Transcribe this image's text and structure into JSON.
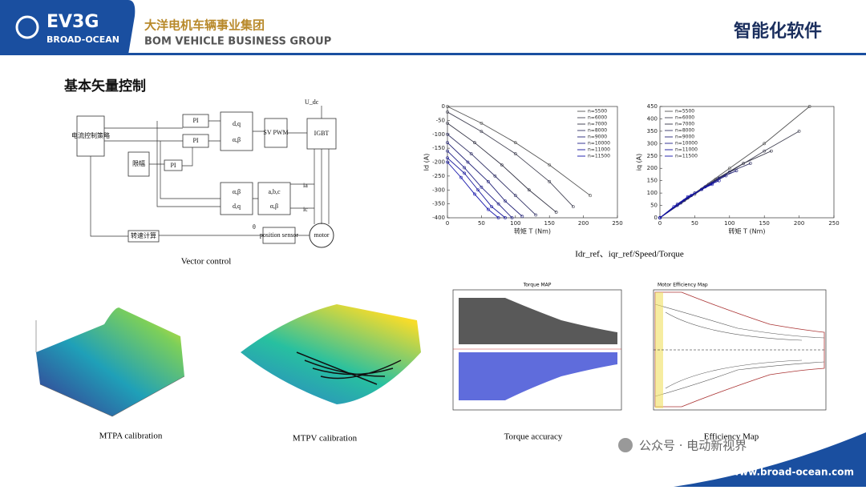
{
  "header": {
    "logo": "EV3G",
    "logo_sub": "BROAD-OCEAN",
    "company_cn": "大洋电机车辆事业集团",
    "company_en": "BOM VEHICLE BUSINESS GROUP",
    "section": "智能化软件"
  },
  "title": "基本矢量控制",
  "diagram": {
    "nodes": [
      "电流控制策略",
      "PI",
      "PI",
      "PI",
      "d,q",
      "α,β",
      "SV PWM",
      "IGBT",
      "U_dc",
      "限幅",
      "α,β",
      "a,b,c",
      "d,q",
      "α,β",
      "ia",
      "ic",
      "θ",
      "position sensor",
      "motor",
      "转速计算"
    ],
    "caption": "Vector control"
  },
  "charts": [
    {
      "type": "line",
      "xlabel": "转矩 T (Nm)",
      "ylabel": "Id (A)",
      "xlim": [
        0,
        250
      ],
      "xticks": [
        0,
        50,
        100,
        150,
        200,
        250
      ],
      "ylim": [
        -400,
        0
      ],
      "yticks": [
        -400,
        -350,
        -300,
        -250,
        -200,
        -150,
        -100,
        -50,
        0
      ],
      "legend": "top-right",
      "series": [
        {
          "name": "n=5500",
          "color": "#555",
          "x": [
            0,
            50,
            100,
            150,
            210
          ],
          "values": [
            0,
            -60,
            -130,
            -210,
            -320
          ]
        },
        {
          "name": "n=6000",
          "color": "#445",
          "x": [
            0,
            50,
            100,
            150,
            185
          ],
          "values": [
            -20,
            -90,
            -170,
            -270,
            -360
          ]
        },
        {
          "name": "n=7000",
          "color": "#334",
          "x": [
            0,
            40,
            80,
            120,
            160
          ],
          "values": [
            -60,
            -130,
            -210,
            -300,
            -380
          ]
        },
        {
          "name": "n=8000",
          "color": "#336",
          "x": [
            0,
            35,
            70,
            100,
            130
          ],
          "values": [
            -100,
            -170,
            -250,
            -320,
            -390
          ]
        },
        {
          "name": "n=9000",
          "color": "#227",
          "x": [
            0,
            30,
            60,
            85,
            110
          ],
          "values": [
            -130,
            -200,
            -270,
            -340,
            -395
          ]
        },
        {
          "name": "n=10000",
          "color": "#228",
          "x": [
            0,
            25,
            50,
            75,
            95
          ],
          "values": [
            -160,
            -220,
            -290,
            -350,
            -400
          ]
        },
        {
          "name": "n=11000",
          "color": "#119",
          "x": [
            0,
            25,
            45,
            65,
            85
          ],
          "values": [
            -185,
            -240,
            -300,
            -360,
            -400
          ]
        },
        {
          "name": "n=11500",
          "color": "#11a",
          "x": [
            0,
            20,
            40,
            60,
            75
          ],
          "values": [
            -200,
            -255,
            -315,
            -370,
            -400
          ]
        }
      ]
    },
    {
      "type": "line",
      "xlabel": "转矩 T (Nm)",
      "ylabel": "iq (A)",
      "xlim": [
        0,
        250
      ],
      "xticks": [
        0,
        50,
        100,
        150,
        200,
        250
      ],
      "ylim": [
        0,
        450
      ],
      "yticks": [
        0,
        50,
        100,
        150,
        200,
        250,
        300,
        350,
        400,
        450
      ],
      "legend": "top-left",
      "series": [
        {
          "name": "n=5500",
          "color": "#555",
          "x": [
            0,
            50,
            100,
            150,
            215
          ],
          "values": [
            0,
            100,
            200,
            300,
            450
          ]
        },
        {
          "name": "n=6000",
          "color": "#445",
          "x": [
            0,
            50,
            100,
            150,
            200
          ],
          "values": [
            0,
            95,
            185,
            270,
            350
          ]
        },
        {
          "name": "n=7000",
          "color": "#334",
          "x": [
            0,
            40,
            80,
            120,
            160
          ],
          "values": [
            0,
            80,
            155,
            220,
            270
          ]
        },
        {
          "name": "n=8000",
          "color": "#336",
          "x": [
            0,
            35,
            70,
            100,
            130
          ],
          "values": [
            0,
            70,
            135,
            185,
            220
          ]
        },
        {
          "name": "n=9000",
          "color": "#227",
          "x": [
            0,
            30,
            60,
            85,
            110
          ],
          "values": [
            0,
            60,
            115,
            160,
            190
          ]
        },
        {
          "name": "n=10000",
          "color": "#228",
          "x": [
            0,
            25,
            50,
            75,
            95
          ],
          "values": [
            0,
            55,
            100,
            140,
            170
          ]
        },
        {
          "name": "n=11000",
          "color": "#119",
          "x": [
            0,
            25,
            45,
            65,
            85
          ],
          "values": [
            0,
            50,
            90,
            125,
            150
          ]
        },
        {
          "name": "n=11500",
          "color": "#11a",
          "x": [
            0,
            20,
            40,
            60,
            75
          ],
          "values": [
            0,
            45,
            85,
            115,
            135
          ]
        }
      ]
    }
  ],
  "charts_caption": "Idr_ref、iqr_ref/Speed/Torque",
  "figures": [
    {
      "caption": "MTPA calibration"
    },
    {
      "caption": "MTPV calibration"
    },
    {
      "title": "Torque MAP",
      "caption": "Torque accuracy"
    },
    {
      "title": "Motor Efficiency Map",
      "caption": "Efficiency Map"
    }
  ],
  "footer": {
    "watermark": "公众号 · 电动新视界",
    "url": "www.broad-ocean.com"
  }
}
